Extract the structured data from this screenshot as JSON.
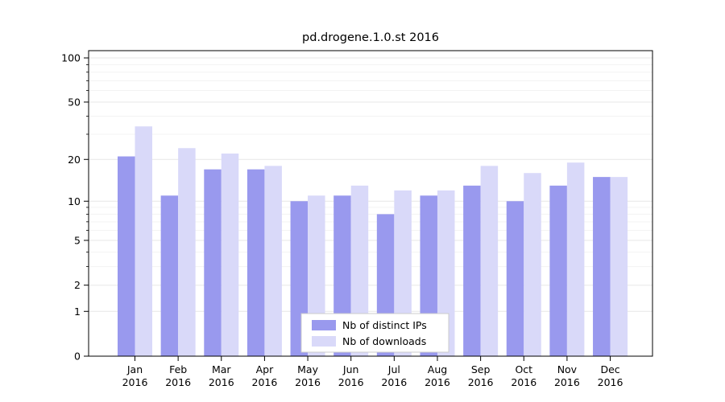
{
  "figure": {
    "title": "pd.drogene.1.0.st 2016"
  },
  "chart_data": {
    "type": "bar",
    "title": "pd.drogene.1.0.st 2016",
    "categories": [
      "Jan",
      "Feb",
      "Mar",
      "Apr",
      "May",
      "Jun",
      "Jul",
      "Aug",
      "Sep",
      "Oct",
      "Nov",
      "Dec"
    ],
    "category_year": "2016",
    "series": [
      {
        "name": "Nb of distinct IPs",
        "color": "#9999ee",
        "values": [
          21,
          11,
          17,
          17,
          10,
          11,
          8,
          11,
          13,
          10,
          13,
          15
        ]
      },
      {
        "name": "Nb of downloads",
        "color": "#d9d9f9",
        "values": [
          34,
          24,
          22,
          18,
          11,
          13,
          12,
          12,
          18,
          16,
          19,
          15
        ]
      }
    ],
    "xlabel": "",
    "ylabel": "",
    "yscale": "log10(1+v)",
    "yticks": [
      0,
      1,
      2,
      5,
      10,
      20,
      50,
      100
    ],
    "minor_yticks": [
      3,
      4,
      6,
      7,
      8,
      9,
      30,
      40,
      60,
      70,
      80,
      90
    ],
    "ylim": [
      0,
      112
    ],
    "grid": "horizontal",
    "legend": {
      "position": "bottom-center",
      "entries": [
        "Nb of distinct IPs",
        "Nb of downloads"
      ]
    }
  },
  "colors": {
    "background": "#ffffff",
    "grid_major": "#e7e7e7",
    "grid_minor": "#f3f3f3",
    "axis": "#000000",
    "legend_border": "#cccccc",
    "legend_background": "#ffffff",
    "series_ips": "#9999ee",
    "series_downloads": "#d9d9f9"
  }
}
